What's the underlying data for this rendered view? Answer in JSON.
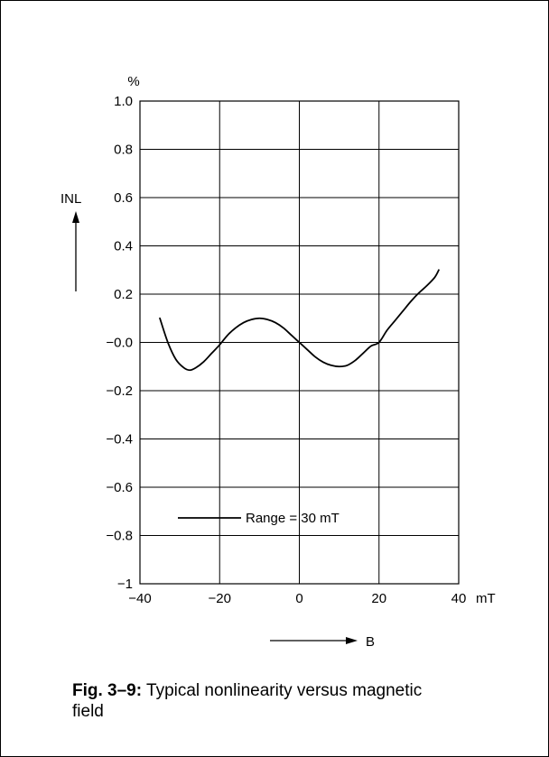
{
  "chart_data": {
    "type": "line",
    "title": "",
    "ylabel": "INL",
    "yunit": "%",
    "xlabel": "B",
    "xunit": "mT",
    "xlim": [
      -40,
      40
    ],
    "ylim": [
      -1,
      1
    ],
    "x_ticks": [
      -40,
      -20,
      0,
      20,
      40
    ],
    "x_tick_labels": [
      "−40",
      "−20",
      "0",
      "20",
      "40"
    ],
    "y_ticks": [
      1.0,
      0.8,
      0.6,
      0.4,
      0.2,
      0.0,
      -0.2,
      -0.4,
      -0.6,
      -0.8,
      -1.0
    ],
    "y_tick_labels": [
      "1.0",
      "0.8",
      "0.6",
      "0.4",
      "0.2",
      "−0.0",
      "−0.2",
      "−0.4",
      "−0.6",
      "−0.8",
      "−1"
    ],
    "grid": true,
    "legend_position": "bottom-left",
    "series": [
      {
        "name": "Range = 30 mT",
        "x": [
          -35,
          -33,
          -31,
          -29,
          -27.5,
          -26,
          -24,
          -22,
          -20,
          -18,
          -16,
          -14,
          -12,
          -10,
          -8,
          -6,
          -4,
          -2,
          0,
          2,
          4,
          6,
          8,
          10,
          12,
          14,
          16,
          18,
          20,
          22,
          24,
          26,
          28,
          30,
          32,
          34,
          35
        ],
        "y": [
          0.1,
          0.0,
          -0.07,
          -0.105,
          -0.115,
          -0.105,
          -0.08,
          -0.045,
          -0.01,
          0.03,
          0.06,
          0.082,
          0.095,
          0.1,
          0.095,
          0.082,
          0.06,
          0.03,
          0.0,
          -0.03,
          -0.06,
          -0.082,
          -0.095,
          -0.1,
          -0.095,
          -0.075,
          -0.045,
          -0.015,
          0.0,
          0.05,
          0.09,
          0.13,
          0.17,
          0.205,
          0.235,
          0.27,
          0.3
        ]
      }
    ]
  },
  "caption": {
    "label": "Fig. 3–9:",
    "text": " Typical nonlinearity versus magnetic field"
  },
  "colors": {
    "line": "#000000",
    "grid": "#000000",
    "background": "#ffffff"
  }
}
